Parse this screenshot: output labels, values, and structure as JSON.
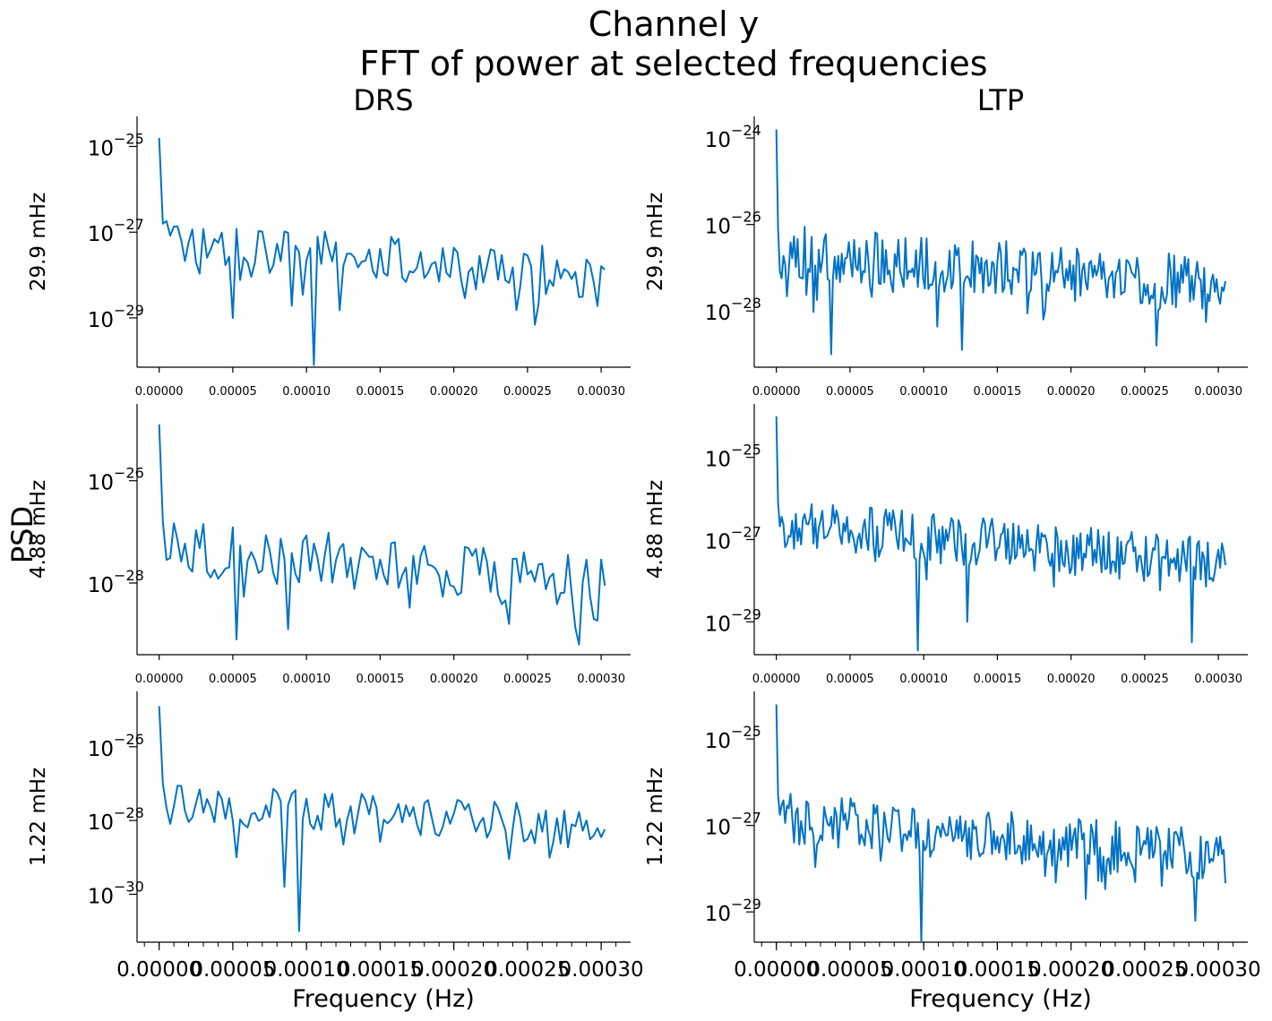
{
  "figure": {
    "suptitle_line1": "Channel y",
    "suptitle_line2": "FFT of power at selected frequencies",
    "column_titles": [
      "DRS",
      "LTP"
    ],
    "ylabel": "PSD",
    "xlabel": "Frequency (Hz)",
    "line_color": "#0072c4"
  },
  "chart_data": [
    {
      "type": "line",
      "panel": "DRS · 29.9 mHz",
      "row_label": "29.9 mHz",
      "column": "DRS",
      "yscale": "log",
      "xlim": [
        -1.5e-05,
        0.00032
      ],
      "ylim_log10": [
        -30.15,
        -24.3
      ],
      "yticks_exp": [
        -25,
        -27,
        -29
      ],
      "xticks": [
        "0.00000",
        "0.00005",
        "0.00010",
        "0.00015",
        "0.00020",
        "0.00025",
        "0.00030"
      ],
      "x_step": 2.5e-06,
      "seed": 101,
      "first_log": -24.8,
      "base_start": -27.3,
      "base_end": -28.0,
      "noise": 0.6,
      "dips": [
        [
          20,
          -29.0
        ],
        [
          42,
          -30.1
        ],
        [
          135,
          -29.1
        ]
      ]
    },
    {
      "type": "line",
      "panel": "LTP · 29.9 mHz",
      "row_label": "29.9 mHz",
      "column": "LTP",
      "yscale": "log",
      "xlim": [
        -1.5e-05,
        0.00032
      ],
      "ylim_log10": [
        -29.3,
        -23.5
      ],
      "yticks_exp": [
        -24,
        -26,
        -28
      ],
      "xticks": [
        "0.00000",
        "0.00005",
        "0.00010",
        "0.00015",
        "0.00020",
        "0.00025",
        "0.00030"
      ],
      "x_step": 1.2e-06,
      "seed": 202,
      "first_log": -23.8,
      "base_start": -26.6,
      "base_end": -27.4,
      "noise": 0.65,
      "dips": [
        [
          31,
          -29.0
        ],
        [
          105,
          -28.9
        ],
        [
          215,
          -28.8
        ]
      ]
    },
    {
      "type": "line",
      "panel": "DRS · 4.88 mHz",
      "row_label": "4.88 mHz",
      "column": "DRS",
      "yscale": "log",
      "xlim": [
        -1.5e-05,
        0.00032
      ],
      "ylim_log10": [
        -29.4,
        -24.5
      ],
      "yticks_exp": [
        -26,
        -28
      ],
      "xticks": [
        "0.00000",
        "0.00005",
        "0.00010",
        "0.00015",
        "0.00020",
        "0.00025",
        "0.00030"
      ],
      "x_step": 2.5e-06,
      "seed": 303,
      "first_log": -24.9,
      "base_start": -27.3,
      "base_end": -28.0,
      "noise": 0.55,
      "dips": [
        [
          21,
          -29.1
        ],
        [
          35,
          -28.9
        ],
        [
          95,
          -28.8
        ],
        [
          114,
          -29.2
        ]
      ]
    },
    {
      "type": "line",
      "panel": "LTP · 4.88 mHz",
      "row_label": "4.88 mHz",
      "column": "LTP",
      "yscale": "log",
      "xlim": [
        -1.5e-05,
        0.00032
      ],
      "ylim_log10": [
        -29.8,
        -23.7
      ],
      "yticks_exp": [
        -25,
        -27,
        -29
      ],
      "xticks": [
        "0.00000",
        "0.00005",
        "0.00010",
        "0.00015",
        "0.00020",
        "0.00025",
        "0.00030"
      ],
      "x_step": 1.2e-06,
      "seed": 404,
      "first_log": -24.0,
      "base_start": -26.6,
      "base_end": -27.6,
      "noise": 0.6,
      "dips": [
        [
          80,
          -29.7
        ],
        [
          108,
          -29.0
        ],
        [
          235,
          -29.5
        ]
      ]
    },
    {
      "type": "line",
      "panel": "DRS · 1.22 mHz",
      "row_label": "1.22 mHz",
      "column": "DRS",
      "yscale": "log",
      "xlim": [
        -1.5e-05,
        0.00032
      ],
      "ylim_log10": [
        -31.3,
        -24.5
      ],
      "yticks_exp": [
        -26,
        -28,
        -30
      ],
      "xticks": [
        "0.00000",
        "0.00005",
        "0.00010",
        "0.00015",
        "0.00020",
        "0.00025",
        "0.00030"
      ],
      "x_step": 2.5e-06,
      "seed": 505,
      "first_log": -24.9,
      "base_start": -27.5,
      "base_end": -28.2,
      "noise": 0.55,
      "dips": [
        [
          21,
          -29.0
        ],
        [
          34,
          -29.8
        ],
        [
          38,
          -31.0
        ],
        [
          129,
          -29.3
        ]
      ]
    },
    {
      "type": "line",
      "panel": "LTP · 1.22 mHz",
      "row_label": "1.22 mHz",
      "column": "LTP",
      "yscale": "log",
      "xlim": [
        -1.5e-05,
        0.00032
      ],
      "ylim_log10": [
        -29.7,
        -23.9
      ],
      "yticks_exp": [
        -25,
        -27,
        -29
      ],
      "xticks": [
        "0.00000",
        "0.00005",
        "0.00010",
        "0.00015",
        "0.00020",
        "0.00025",
        "0.00030"
      ],
      "x_step": 1.2e-06,
      "seed": 606,
      "first_log": -24.2,
      "base_start": -26.8,
      "base_end": -27.7,
      "noise": 0.6,
      "dips": [
        [
          82,
          -29.7
        ],
        [
          175,
          -28.7
        ],
        [
          237,
          -29.2
        ]
      ]
    }
  ]
}
